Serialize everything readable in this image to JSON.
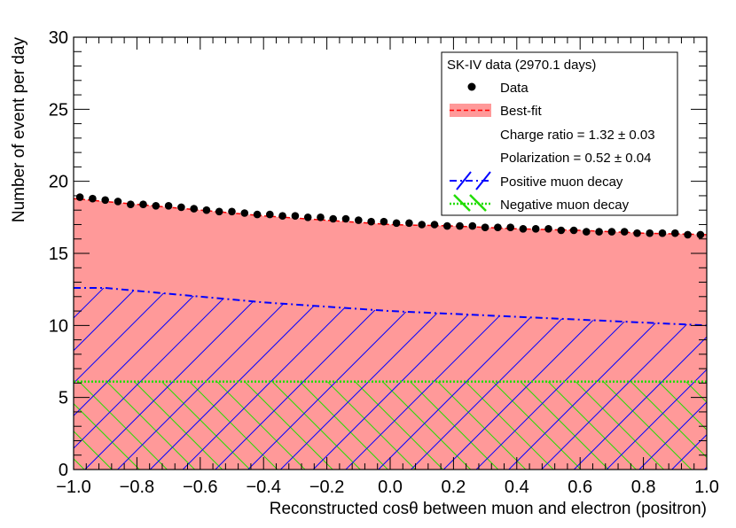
{
  "chart_data": {
    "type": "line",
    "xlabel": "Reconstructed cosθ between muon and electron (positron)",
    "ylabel": "Number of event per day",
    "xlim": [
      -1.0,
      1.0
    ],
    "ylim": [
      0,
      30
    ],
    "x_ticks": [
      "−1.0",
      "−0.8",
      "−0.6",
      "−0.4",
      "−0.2",
      "0.0",
      "0.2",
      "0.4",
      "0.6",
      "0.8",
      "1.0"
    ],
    "y_ticks": [
      "0",
      "5",
      "10",
      "15",
      "20",
      "25",
      "30"
    ],
    "legend": {
      "title": "SK-IV data (2970.1 days)",
      "entries": [
        "Data",
        "Best-fit",
        "Charge ratio = 1.32 ± 0.03",
        "Polarization = 0.52 ± 0.04",
        "Positive muon decay",
        "Negative muon decay"
      ],
      "position": "top-right"
    },
    "series": [
      {
        "name": "Data",
        "kind": "points",
        "color": "#000000",
        "x": [
          -0.98,
          -0.94,
          -0.9,
          -0.86,
          -0.82,
          -0.78,
          -0.74,
          -0.7,
          -0.66,
          -0.62,
          -0.58,
          -0.54,
          -0.5,
          -0.46,
          -0.42,
          -0.38,
          -0.34,
          -0.3,
          -0.26,
          -0.22,
          -0.18,
          -0.14,
          -0.1,
          -0.06,
          -0.02,
          0.02,
          0.06,
          0.1,
          0.14,
          0.18,
          0.22,
          0.26,
          0.3,
          0.34,
          0.38,
          0.42,
          0.46,
          0.5,
          0.54,
          0.58,
          0.62,
          0.66,
          0.7,
          0.74,
          0.78,
          0.82,
          0.86,
          0.9,
          0.94,
          0.98
        ],
        "y": [
          18.9,
          18.8,
          18.7,
          18.6,
          18.4,
          18.4,
          18.3,
          18.3,
          18.2,
          18.1,
          18.0,
          17.9,
          17.9,
          17.8,
          17.7,
          17.7,
          17.6,
          17.6,
          17.5,
          17.5,
          17.4,
          17.4,
          17.3,
          17.2,
          17.2,
          17.1,
          17.1,
          17.0,
          17.0,
          16.9,
          16.9,
          16.9,
          16.8,
          16.8,
          16.8,
          16.7,
          16.7,
          16.7,
          16.6,
          16.6,
          16.5,
          16.5,
          16.5,
          16.5,
          16.4,
          16.4,
          16.4,
          16.4,
          16.3,
          16.3
        ]
      },
      {
        "name": "Best-fit",
        "kind": "filled",
        "color": "#ff9999",
        "line_color": "#ff0000",
        "x": [
          -1.0,
          -0.8,
          -0.6,
          -0.4,
          -0.2,
          0.0,
          0.2,
          0.4,
          0.6,
          0.8,
          1.0
        ],
        "y": [
          18.8,
          18.4,
          18.0,
          17.6,
          17.3,
          17.0,
          16.9,
          16.7,
          16.6,
          16.4,
          16.3
        ]
      },
      {
        "name": "Positive muon decay",
        "kind": "hatched",
        "color": "#0000ff",
        "x": [
          -1.0,
          -0.9,
          -0.8,
          -0.6,
          -0.4,
          -0.2,
          0.0,
          0.2,
          0.4,
          0.6,
          0.8,
          1.0
        ],
        "y": [
          12.6,
          12.6,
          12.4,
          12.0,
          11.6,
          11.3,
          11.0,
          10.8,
          10.6,
          10.4,
          10.2,
          10.0
        ]
      },
      {
        "name": "Negative muon decay",
        "kind": "hatched",
        "color": "#22dd00",
        "x": [
          -1.0,
          1.0
        ],
        "y": [
          6.1,
          6.1
        ]
      }
    ]
  }
}
